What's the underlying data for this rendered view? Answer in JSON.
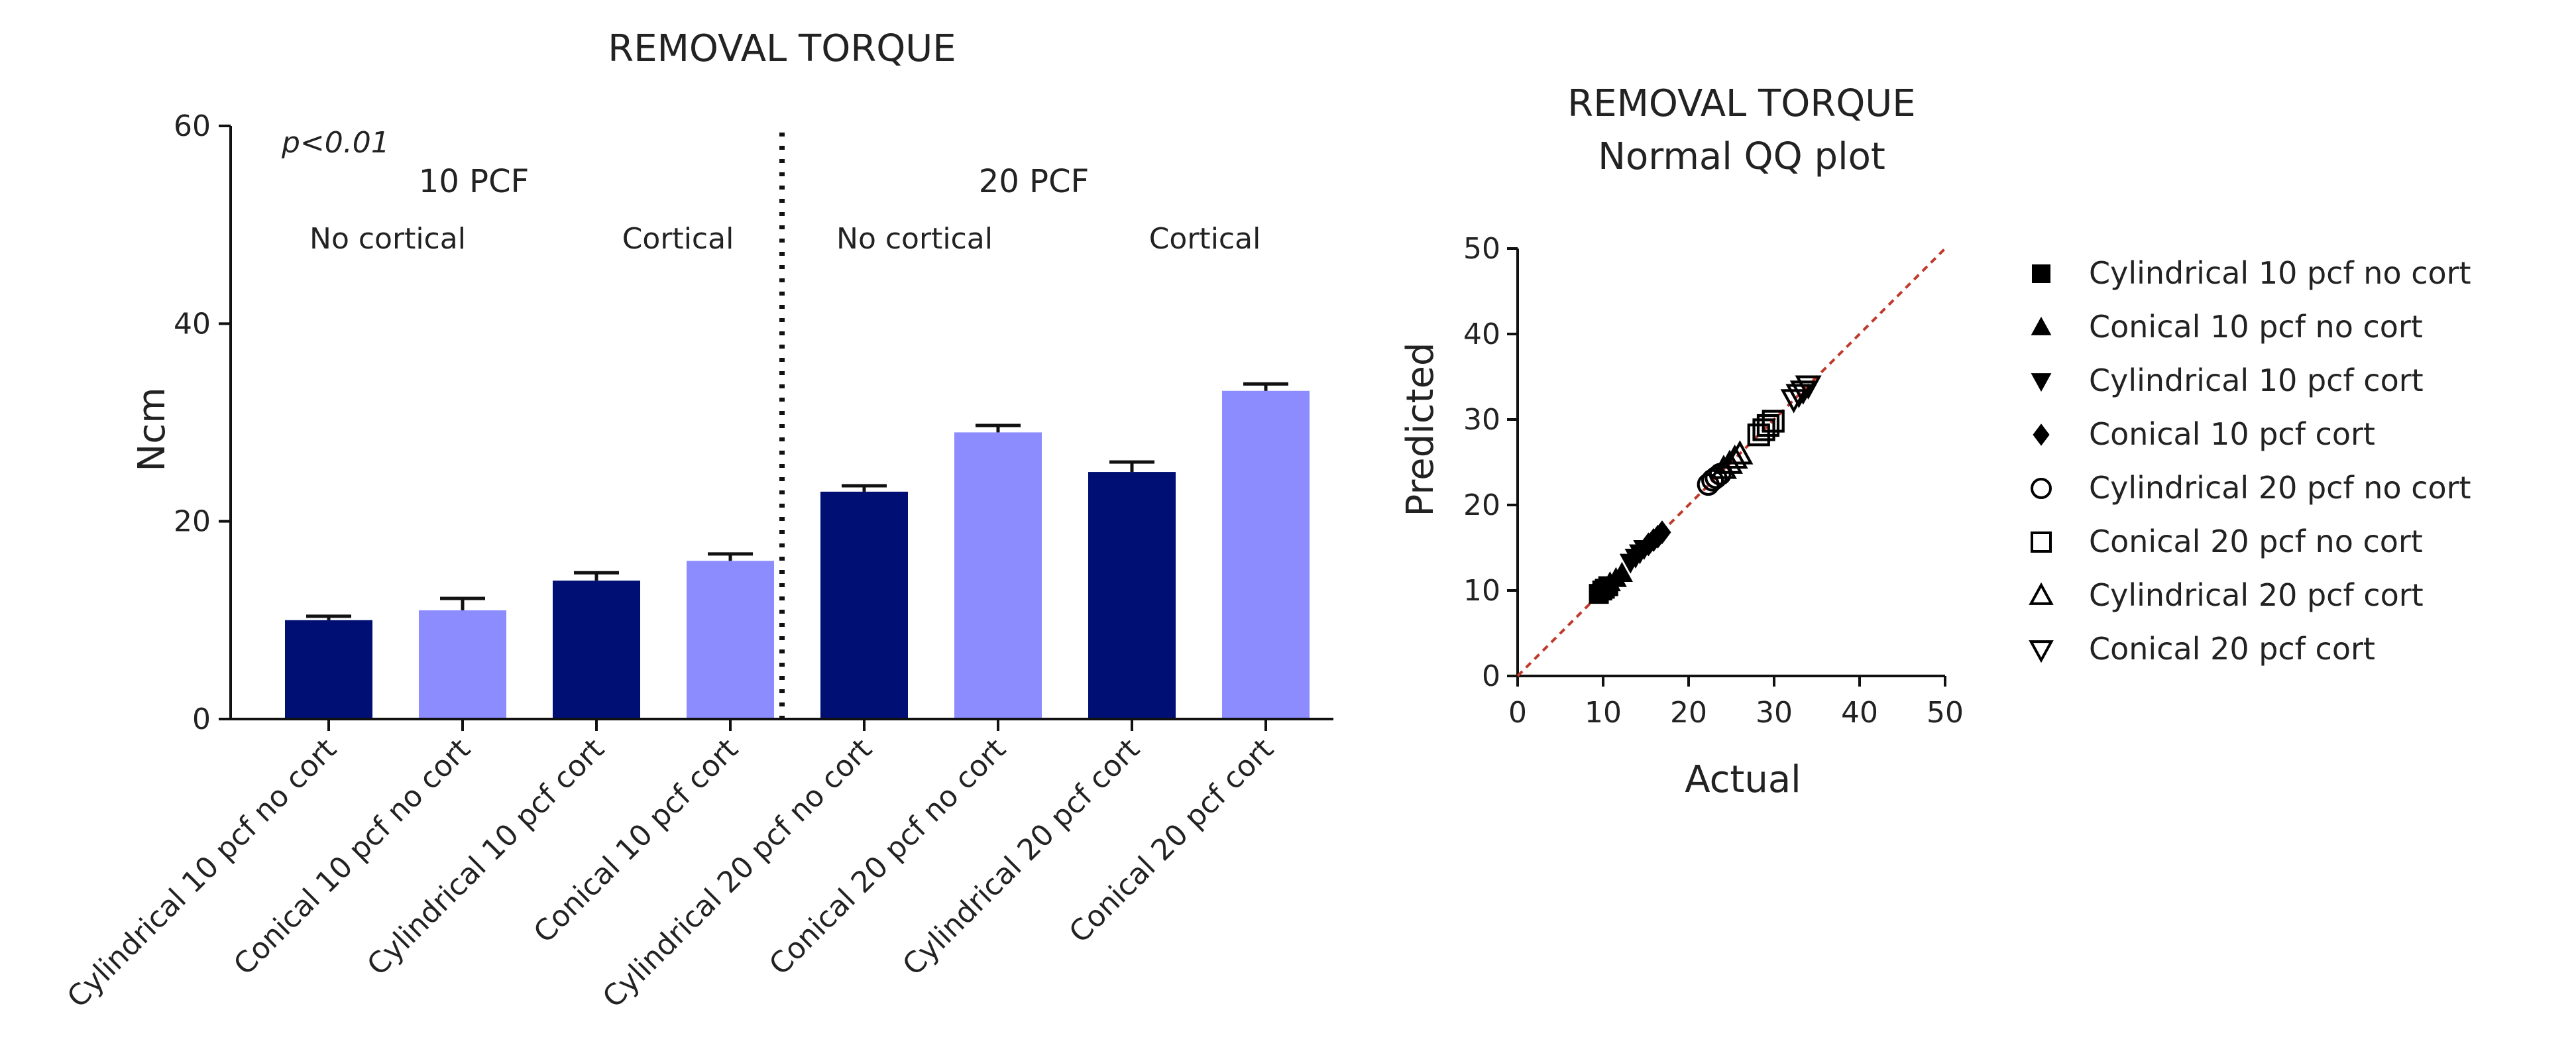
{
  "chart_data": [
    {
      "type": "bar",
      "title": "REMOVAL TORQUE",
      "ylabel": "Ncm",
      "xlabel": "",
      "ylim": [
        0,
        60
      ],
      "yticks": [
        "0",
        "20",
        "40",
        "60"
      ],
      "annotation": "p<0.01",
      "groups": [
        {
          "label": "10 PCF",
          "subgroups": [
            "No cortical",
            "Cortical"
          ]
        },
        {
          "label": "20 PCF",
          "subgroups": [
            "No cortical",
            "Cortical"
          ]
        }
      ],
      "categories": [
        "Cylindrical 10 pcf no cort",
        "Conical 10 pcf no cort",
        "Cylindrical 10 pcf cort",
        "Conical 10 pcf cort",
        "Cylindrical 20 pcf no cort",
        "Conical 20 pcf no cort",
        "Cylindrical 20 pcf cort",
        "Conical 20 pcf cort"
      ],
      "values": [
        10.0,
        11.0,
        14.0,
        16.0,
        23.0,
        29.0,
        25.0,
        33.2
      ],
      "errors": [
        0.4,
        1.2,
        0.8,
        0.7,
        0.6,
        0.7,
        1.0,
        0.7
      ],
      "colors": [
        "#000f73",
        "#8c8cff",
        "#000f73",
        "#8c8cff",
        "#000f73",
        "#8c8cff",
        "#000f73",
        "#8c8cff"
      ]
    },
    {
      "type": "scatter",
      "title": "REMOVAL TORQUE",
      "subtitle": "Normal QQ plot",
      "xlabel": "Actual",
      "ylabel": "Predicted",
      "xlim": [
        0,
        50
      ],
      "ylim": [
        0,
        50
      ],
      "xticks": [
        "0",
        "10",
        "20",
        "30",
        "40",
        "50"
      ],
      "yticks": [
        "0",
        "10",
        "20",
        "30",
        "40",
        "50"
      ],
      "reference_line": {
        "from": [
          0,
          0
        ],
        "to": [
          50,
          50
        ],
        "color": "#c0392b"
      },
      "series": [
        {
          "name": "Cylindrical 10 pcf no cort",
          "marker": "square-filled",
          "points": [
            [
              9.5,
              9.6
            ],
            [
              9.9,
              10.0
            ],
            [
              10.2,
              10.2
            ],
            [
              10.6,
              10.5
            ]
          ]
        },
        {
          "name": "Conical 10 pcf no cort",
          "marker": "triangle-up-filled",
          "points": [
            [
              10.0,
              10.3
            ],
            [
              10.8,
              10.9
            ],
            [
              11.5,
              11.4
            ],
            [
              12.2,
              12.0
            ]
          ]
        },
        {
          "name": "Cylindrical 10 pcf cort",
          "marker": "triangle-down-filled",
          "points": [
            [
              13.2,
              13.3
            ],
            [
              13.8,
              13.9
            ],
            [
              14.3,
              14.4
            ],
            [
              14.8,
              14.9
            ]
          ]
        },
        {
          "name": "Conical 10 pcf cort",
          "marker": "diamond-filled",
          "points": [
            [
              15.3,
              15.4
            ],
            [
              15.9,
              15.9
            ],
            [
              16.4,
              16.3
            ],
            [
              16.9,
              16.8
            ]
          ]
        },
        {
          "name": "Cylindrical 20 pcf no cort",
          "marker": "circle-open",
          "points": [
            [
              22.3,
              22.4
            ],
            [
              22.8,
              22.9
            ],
            [
              23.2,
              23.2
            ],
            [
              23.7,
              23.6
            ]
          ]
        },
        {
          "name": "Conical 20 pcf no cort",
          "marker": "square-open",
          "points": [
            [
              28.2,
              28.2
            ],
            [
              28.8,
              28.8
            ],
            [
              29.3,
              29.3
            ],
            [
              29.9,
              29.8
            ]
          ]
        },
        {
          "name": "Cylindrical 20 pcf cort",
          "marker": "triangle-up-open",
          "points": [
            [
              24.1,
              24.2
            ],
            [
              24.8,
              24.8
            ],
            [
              25.4,
              25.4
            ],
            [
              26.0,
              25.9
            ]
          ]
        },
        {
          "name": "Conical 20 pcf cort",
          "marker": "triangle-down-open",
          "points": [
            [
              32.3,
              32.4
            ],
            [
              32.9,
              33.0
            ],
            [
              33.4,
              33.4
            ],
            [
              34.0,
              34.0
            ]
          ]
        }
      ]
    }
  ]
}
